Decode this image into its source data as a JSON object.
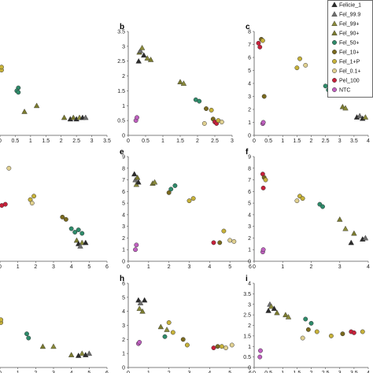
{
  "legend": [
    {
      "name": "Felicie_1",
      "shape": "triangle",
      "fill": "#2b2b2b"
    },
    {
      "name": "Fel_99.9",
      "shape": "triangle",
      "fill": "#6e6e6e"
    },
    {
      "name": "Fel_99+",
      "shape": "triangle",
      "fill": "#8a8a3a"
    },
    {
      "name": "Fel_90+",
      "shape": "triangle",
      "fill": "#7a7a2e"
    },
    {
      "name": "Fel_50+",
      "shape": "circle",
      "fill": "#2e8b6a"
    },
    {
      "name": "Fel_10+",
      "shape": "circle",
      "fill": "#7a6a1e"
    },
    {
      "name": "Fel_1+P",
      "shape": "circle",
      "fill": "#c7b23a"
    },
    {
      "name": "Fel_0.1+",
      "shape": "circle",
      "fill": "#e0d090"
    },
    {
      "name": "Pel_100",
      "shape": "circle",
      "fill": "#c8203a"
    },
    {
      "name": "NTC",
      "shape": "circle",
      "fill": "#c060c0"
    }
  ],
  "chart_data": [
    {
      "type": "scatter",
      "label": "",
      "xlim": [
        0,
        3.5
      ],
      "xticks": [
        "0",
        "0.5",
        "1",
        "1.5",
        "2",
        "2.5",
        "3",
        "3.5"
      ],
      "ylim": [
        0,
        3.5
      ],
      "yticks": [],
      "points": [
        {
          "s": "Fel_1+P",
          "x": 0.05,
          "y": 2.2
        },
        {
          "s": "Fel_1+P",
          "x": 0.05,
          "y": 2.3
        },
        {
          "s": "Fel_50+",
          "x": 0.6,
          "y": 1.6
        },
        {
          "s": "Fel_50+",
          "x": 0.55,
          "y": 1.5
        },
        {
          "s": "Fel_50+",
          "x": 0.6,
          "y": 1.45
        },
        {
          "s": "Fel_90+",
          "x": 0.8,
          "y": 0.8
        },
        {
          "s": "Fel_90+",
          "x": 1.2,
          "y": 1.0
        },
        {
          "s": "Fel_90+",
          "x": 2.1,
          "y": 0.6
        },
        {
          "s": "Felicie_1",
          "x": 2.3,
          "y": 0.55
        },
        {
          "s": "Fel_90+",
          "x": 2.4,
          "y": 0.6
        },
        {
          "s": "Felicie_1",
          "x": 2.5,
          "y": 0.55
        },
        {
          "s": "Fel_99+",
          "x": 2.6,
          "y": 0.6
        },
        {
          "s": "Felicie_1",
          "x": 2.7,
          "y": 0.6
        },
        {
          "s": "Fel_99.9",
          "x": 2.8,
          "y": 0.6
        }
      ]
    },
    {
      "type": "scatter",
      "label": "b",
      "xlim": [
        0,
        3
      ],
      "xticks": [
        "0",
        "0.5",
        "1",
        "1.5",
        "2",
        "2.5",
        "3"
      ],
      "ylim": [
        0,
        3.5
      ],
      "yticks": [
        "0",
        "0.5",
        "1",
        "1.5",
        "2",
        "2.5",
        "3",
        "3.5"
      ],
      "points": [
        {
          "s": "NTC",
          "x": 0.22,
          "y": 0.5
        },
        {
          "s": "NTC",
          "x": 0.25,
          "y": 0.6
        },
        {
          "s": "Felicie_1",
          "x": 0.3,
          "y": 2.5
        },
        {
          "s": "Fel_90+",
          "x": 0.32,
          "y": 2.8
        },
        {
          "s": "Fel_99.9",
          "x": 0.35,
          "y": 2.85
        },
        {
          "s": "Fel_99+",
          "x": 0.4,
          "y": 2.95
        },
        {
          "s": "Felicie_1",
          "x": 0.45,
          "y": 2.7
        },
        {
          "s": "Fel_99+",
          "x": 0.55,
          "y": 2.6
        },
        {
          "s": "Fel_90+",
          "x": 0.65,
          "y": 2.55
        },
        {
          "s": "Fel_90+",
          "x": 1.5,
          "y": 1.8
        },
        {
          "s": "Fel_99+",
          "x": 1.6,
          "y": 1.75
        },
        {
          "s": "Fel_50+",
          "x": 1.95,
          "y": 1.2
        },
        {
          "s": "Fel_50+",
          "x": 2.05,
          "y": 1.15
        },
        {
          "s": "Fel_10+",
          "x": 2.25,
          "y": 0.9
        },
        {
          "s": "Fel_1+P",
          "x": 2.4,
          "y": 0.85
        },
        {
          "s": "Fel_0.1+",
          "x": 2.2,
          "y": 0.4
        },
        {
          "s": "Fel_10+",
          "x": 2.45,
          "y": 0.55
        },
        {
          "s": "Pel_100",
          "x": 2.5,
          "y": 0.45
        },
        {
          "s": "Pel_100",
          "x": 2.55,
          "y": 0.4
        },
        {
          "s": "Fel_1+P",
          "x": 2.6,
          "y": 0.5
        },
        {
          "s": "Fel_0.1+",
          "x": 2.7,
          "y": 0.45
        }
      ]
    },
    {
      "type": "scatter",
      "label": "c",
      "xlim": [
        0,
        4
      ],
      "xticks": [
        "0",
        "0.5",
        "1",
        "1.5",
        "2",
        "2.5",
        "3",
        "3.5",
        "4"
      ],
      "ylim": [
        0,
        8
      ],
      "yticks": [
        "0",
        "1",
        "2",
        "3",
        "4",
        "5",
        "6",
        "7",
        "8"
      ],
      "points": [
        {
          "s": "NTC",
          "x": 0.3,
          "y": 0.9
        },
        {
          "s": "NTC",
          "x": 0.32,
          "y": 1.0
        },
        {
          "s": "Pel_100",
          "x": 0.15,
          "y": 7.1
        },
        {
          "s": "Pel_100",
          "x": 0.2,
          "y": 6.8
        },
        {
          "s": "Fel_10+",
          "x": 0.25,
          "y": 7.4
        },
        {
          "s": "Fel_1+P",
          "x": 0.3,
          "y": 7.3
        },
        {
          "s": "Fel_10+",
          "x": 0.35,
          "y": 3.0
        },
        {
          "s": "Fel_1+P",
          "x": 1.5,
          "y": 5.2
        },
        {
          "s": "Fel_1+P",
          "x": 1.6,
          "y": 5.9
        },
        {
          "s": "Fel_0.1+",
          "x": 1.8,
          "y": 5.4
        },
        {
          "s": "Fel_50+",
          "x": 2.5,
          "y": 3.8
        },
        {
          "s": "Fel_50+",
          "x": 2.6,
          "y": 3.5
        },
        {
          "s": "Fel_90+",
          "x": 3.1,
          "y": 2.2
        },
        {
          "s": "Fel_99+",
          "x": 3.2,
          "y": 2.1
        },
        {
          "s": "Felicie_1",
          "x": 3.6,
          "y": 1.4
        },
        {
          "s": "Fel_99.9",
          "x": 3.7,
          "y": 1.5
        },
        {
          "s": "Felicie_1",
          "x": 3.8,
          "y": 1.3
        },
        {
          "s": "Fel_99+",
          "x": 3.9,
          "y": 1.4
        }
      ]
    },
    {
      "type": "scatter",
      "label": "",
      "xlim": [
        0,
        6
      ],
      "xticks": [
        "0",
        "1",
        "2",
        "3",
        "4",
        "5",
        "6"
      ],
      "ylim": [
        0,
        9
      ],
      "yticks": [],
      "points": [
        {
          "s": "Pel_100",
          "x": 0.1,
          "y": 4.8
        },
        {
          "s": "Pel_100",
          "x": 0.3,
          "y": 4.9
        },
        {
          "s": "Fel_0.1+",
          "x": 0.5,
          "y": 8.0
        },
        {
          "s": "Fel_1+P",
          "x": 1.7,
          "y": 5.3
        },
        {
          "s": "Fel_0.1+",
          "x": 1.8,
          "y": 5.0
        },
        {
          "s": "Fel_1+P",
          "x": 1.9,
          "y": 5.6
        },
        {
          "s": "Fel_10+",
          "x": 3.5,
          "y": 3.8
        },
        {
          "s": "Fel_10+",
          "x": 3.7,
          "y": 3.6
        },
        {
          "s": "Fel_50+",
          "x": 4.0,
          "y": 2.8
        },
        {
          "s": "Fel_50+",
          "x": 4.2,
          "y": 2.5
        },
        {
          "s": "Fel_50+",
          "x": 4.4,
          "y": 2.7
        },
        {
          "s": "Fel_50+",
          "x": 4.6,
          "y": 2.4
        },
        {
          "s": "Fel_90+",
          "x": 4.3,
          "y": 1.8
        },
        {
          "s": "Felicie_1",
          "x": 4.4,
          "y": 1.5
        },
        {
          "s": "Fel_99+",
          "x": 4.6,
          "y": 1.6
        },
        {
          "s": "Felicie_1",
          "x": 4.8,
          "y": 1.6
        },
        {
          "s": "Fel_99.9",
          "x": 4.5,
          "y": 1.3
        }
      ]
    },
    {
      "type": "scatter",
      "label": "e",
      "xlim": [
        0,
        6
      ],
      "xticks": [
        "0",
        "1",
        "2",
        "3",
        "4",
        "5",
        "6"
      ],
      "ylim": [
        0,
        9
      ],
      "yticks": [
        "0",
        "1",
        "2",
        "3",
        "4",
        "5",
        "6",
        "7",
        "8",
        "9"
      ],
      "points": [
        {
          "s": "NTC",
          "x": 0.35,
          "y": 1.0
        },
        {
          "s": "NTC",
          "x": 0.4,
          "y": 1.4
        },
        {
          "s": "Felicie_1",
          "x": 0.3,
          "y": 7.5
        },
        {
          "s": "Fel_99.9",
          "x": 0.35,
          "y": 7.0
        },
        {
          "s": "Fel_99+",
          "x": 0.4,
          "y": 6.6
        },
        {
          "s": "Fel_90+",
          "x": 0.45,
          "y": 7.2
        },
        {
          "s": "Felicie_1",
          "x": 0.5,
          "y": 6.8
        },
        {
          "s": "Fel_90+",
          "x": 1.2,
          "y": 6.7
        },
        {
          "s": "Fel_99+",
          "x": 1.3,
          "y": 6.8
        },
        {
          "s": "Fel_50+",
          "x": 2.1,
          "y": 6.2
        },
        {
          "s": "Fel_50+",
          "x": 2.3,
          "y": 6.5
        },
        {
          "s": "Fel_10+",
          "x": 2.0,
          "y": 5.9
        },
        {
          "s": "Fel_1+P",
          "x": 3.0,
          "y": 5.2
        },
        {
          "s": "Fel_1+P",
          "x": 3.2,
          "y": 5.4
        },
        {
          "s": "Pel_100",
          "x": 4.2,
          "y": 1.6
        },
        {
          "s": "Fel_10+",
          "x": 4.5,
          "y": 1.6
        },
        {
          "s": "Fel_1+P",
          "x": 4.7,
          "y": 2.6
        },
        {
          "s": "Fel_0.1+",
          "x": 5.0,
          "y": 1.8
        },
        {
          "s": "Fel_0.1+",
          "x": 5.2,
          "y": 1.7
        }
      ]
    },
    {
      "type": "scatter",
      "label": "f",
      "xlim": [
        0,
        4
      ],
      "xticks": [
        "0",
        "1",
        "2",
        "3",
        "4"
      ],
      "ylim": [
        0,
        9
      ],
      "yticks": [
        "0",
        "1",
        "2",
        "3",
        "4",
        "5",
        "6",
        "7",
        "8",
        "9"
      ],
      "points": [
        {
          "s": "NTC",
          "x": 0.3,
          "y": 0.8
        },
        {
          "s": "NTC",
          "x": 0.32,
          "y": 1.0
        },
        {
          "s": "Pel_100",
          "x": 0.3,
          "y": 7.5
        },
        {
          "s": "Pel_100",
          "x": 0.32,
          "y": 6.3
        },
        {
          "s": "Fel_10+",
          "x": 0.35,
          "y": 7.2
        },
        {
          "s": "Fel_1+P",
          "x": 0.4,
          "y": 7.0
        },
        {
          "s": "Fel_1+P",
          "x": 1.6,
          "y": 5.6
        },
        {
          "s": "Fel_0.1+",
          "x": 1.5,
          "y": 5.2
        },
        {
          "s": "Fel_1+P",
          "x": 1.7,
          "y": 5.4
        },
        {
          "s": "Fel_50+",
          "x": 2.3,
          "y": 4.9
        },
        {
          "s": "Fel_50+",
          "x": 2.4,
          "y": 4.7
        },
        {
          "s": "Fel_90+",
          "x": 3.0,
          "y": 3.6
        },
        {
          "s": "Fel_99+",
          "x": 3.2,
          "y": 2.8
        },
        {
          "s": "Fel_90+",
          "x": 3.5,
          "y": 2.4
        },
        {
          "s": "Felicie_1",
          "x": 3.4,
          "y": 1.6
        },
        {
          "s": "Felicie_1",
          "x": 3.8,
          "y": 1.9
        },
        {
          "s": "Fel_99.9",
          "x": 3.9,
          "y": 2.0
        }
      ]
    },
    {
      "type": "scatter",
      "label": "",
      "xlim": [
        0,
        6
      ],
      "xticks": [
        "0",
        "1",
        "2",
        "3",
        "4",
        "5",
        "6"
      ],
      "ylim": [
        0,
        6
      ],
      "yticks": [],
      "points": [
        {
          "s": "Fel_1+P",
          "x": 0.05,
          "y": 3.2
        },
        {
          "s": "Fel_1+P",
          "x": 0.05,
          "y": 3.4
        },
        {
          "s": "Fel_50+",
          "x": 1.5,
          "y": 2.4
        },
        {
          "s": "Fel_50+",
          "x": 1.6,
          "y": 2.1
        },
        {
          "s": "Fel_90+",
          "x": 2.4,
          "y": 1.5
        },
        {
          "s": "Fel_99+",
          "x": 3.0,
          "y": 1.5
        },
        {
          "s": "Fel_90+",
          "x": 4.0,
          "y": 0.9
        },
        {
          "s": "Felicie_1",
          "x": 4.4,
          "y": 0.85
        },
        {
          "s": "Fel_99+",
          "x": 4.6,
          "y": 1.0
        },
        {
          "s": "Felicie_1",
          "x": 4.8,
          "y": 0.9
        },
        {
          "s": "Fel_99.9",
          "x": 5.0,
          "y": 1.0
        }
      ]
    },
    {
      "type": "scatter",
      "label": "h",
      "xlim": [
        0,
        6
      ],
      "xticks": [
        "0",
        "1",
        "2",
        "3",
        "4",
        "5",
        "6"
      ],
      "ylim": [
        0,
        6
      ],
      "yticks": [
        "0",
        "1",
        "2",
        "3",
        "4",
        "5",
        "6"
      ],
      "points": [
        {
          "s": "NTC",
          "x": 0.5,
          "y": 1.7
        },
        {
          "s": "NTC",
          "x": 0.55,
          "y": 1.8
        },
        {
          "s": "Felicie_1",
          "x": 0.5,
          "y": 4.8
        },
        {
          "s": "Fel_99.9",
          "x": 0.6,
          "y": 4.6
        },
        {
          "s": "Fel_99+",
          "x": 0.55,
          "y": 4.2
        },
        {
          "s": "Fel_90+",
          "x": 0.7,
          "y": 4.0
        },
        {
          "s": "Felicie_1",
          "x": 0.8,
          "y": 4.8
        },
        {
          "s": "Fel_90+",
          "x": 1.6,
          "y": 2.9
        },
        {
          "s": "Fel_99+",
          "x": 1.9,
          "y": 2.7
        },
        {
          "s": "Fel_50+",
          "x": 1.8,
          "y": 2.2
        },
        {
          "s": "Fel_1+P",
          "x": 2.0,
          "y": 3.2
        },
        {
          "s": "Fel_1+P",
          "x": 2.2,
          "y": 2.5
        },
        {
          "s": "Fel_10+",
          "x": 2.7,
          "y": 2.0
        },
        {
          "s": "Fel_1+P",
          "x": 2.9,
          "y": 1.6
        },
        {
          "s": "Pel_100",
          "x": 4.2,
          "y": 1.4
        },
        {
          "s": "Fel_10+",
          "x": 4.4,
          "y": 1.5
        },
        {
          "s": "Fel_1+P",
          "x": 4.6,
          "y": 1.5
        },
        {
          "s": "Fel_0.1+",
          "x": 4.8,
          "y": 1.4
        },
        {
          "s": "Fel_0.1+",
          "x": 5.1,
          "y": 1.6
        }
      ]
    },
    {
      "type": "scatter",
      "label": "i",
      "xlim": [
        0,
        4
      ],
      "xticks": [
        "0",
        "0.5",
        "1",
        "1.5",
        "2",
        "2.5",
        "3",
        "3.5",
        "4"
      ],
      "ylim": [
        0,
        4
      ],
      "yticks": [
        "0",
        "0.5",
        "1",
        "1.5",
        "2",
        "2.5",
        "3",
        "3.5",
        "4"
      ],
      "points": [
        {
          "s": "NTC",
          "x": 0.2,
          "y": 0.5
        },
        {
          "s": "NTC",
          "x": 0.22,
          "y": 0.8
        },
        {
          "s": "Felicie_1",
          "x": 0.5,
          "y": 2.7
        },
        {
          "s": "Fel_99.9",
          "x": 0.55,
          "y": 3.0
        },
        {
          "s": "Fel_99+",
          "x": 0.6,
          "y": 2.9
        },
        {
          "s": "Felicie_1",
          "x": 0.7,
          "y": 2.8
        },
        {
          "s": "Fel_90+",
          "x": 0.8,
          "y": 2.6
        },
        {
          "s": "Fel_90+",
          "x": 1.1,
          "y": 2.5
        },
        {
          "s": "Fel_99+",
          "x": 1.2,
          "y": 2.4
        },
        {
          "s": "Fel_50+",
          "x": 1.8,
          "y": 2.3
        },
        {
          "s": "Fel_50+",
          "x": 2.0,
          "y": 2.1
        },
        {
          "s": "Fel_10+",
          "x": 1.9,
          "y": 1.8
        },
        {
          "s": "Fel_1+P",
          "x": 2.2,
          "y": 1.7
        },
        {
          "s": "Fel_0.1+",
          "x": 1.7,
          "y": 1.4
        },
        {
          "s": "Fel_1+P",
          "x": 2.7,
          "y": 1.5
        },
        {
          "s": "Fel_10+",
          "x": 3.1,
          "y": 1.6
        },
        {
          "s": "Pel_100",
          "x": 3.4,
          "y": 1.7
        },
        {
          "s": "Pel_100",
          "x": 3.5,
          "y": 1.65
        },
        {
          "s": "Fel_1+P",
          "x": 3.8,
          "y": 1.7
        }
      ]
    }
  ]
}
